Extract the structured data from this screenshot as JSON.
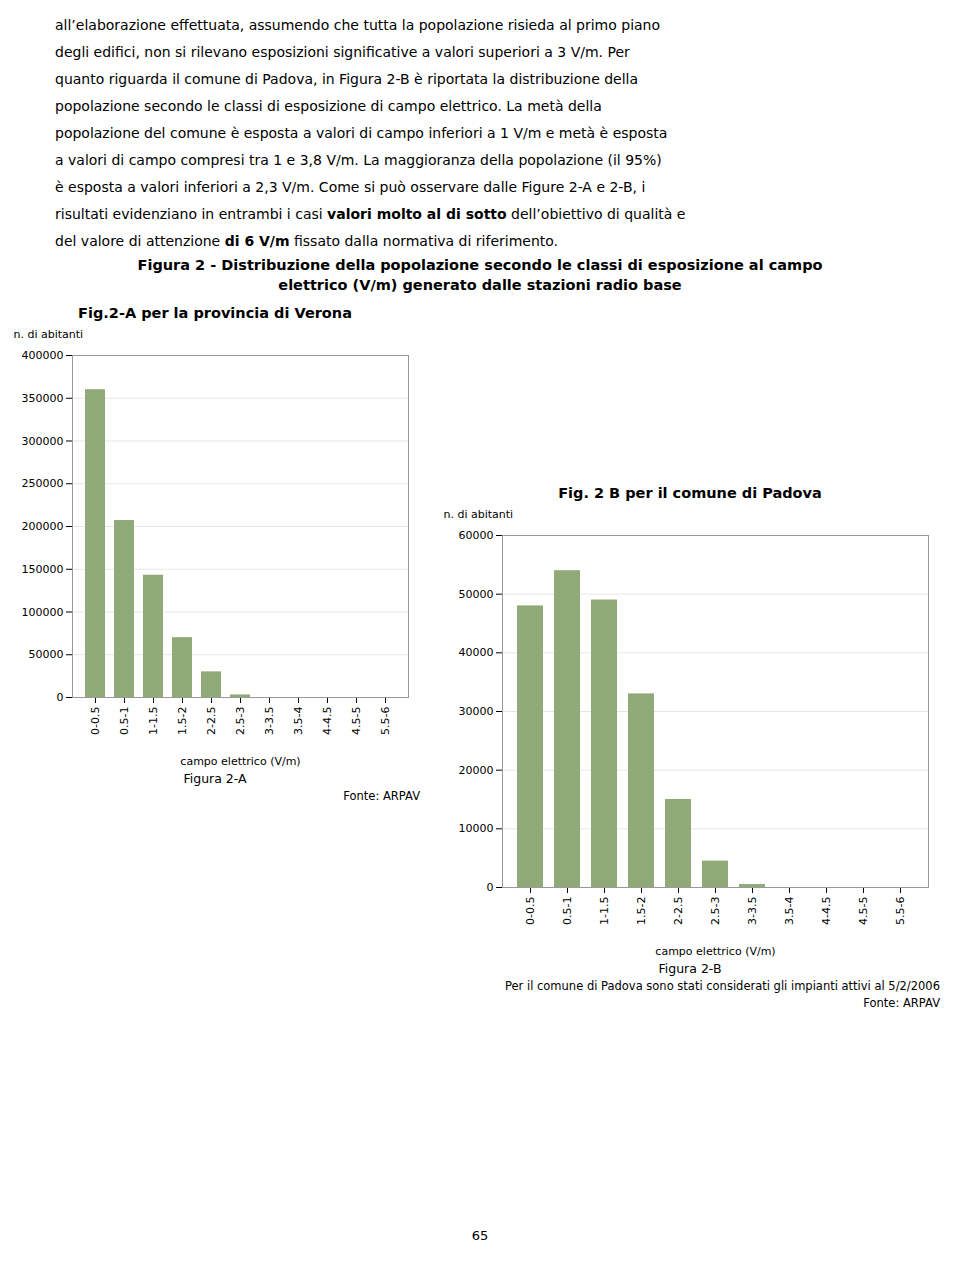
{
  "page_text": [
    [
      {
        "text": "all’elaborazione effettuata, assumendo che tutta la popolazione risieda al primo piano",
        "bold": false
      }
    ],
    [
      {
        "text": "degli edifici, non si rilevano esposizioni significative a valori superiori a 3 V/m. Per",
        "bold": false
      }
    ],
    [
      {
        "text": "quanto riguarda il comune di Padova, in Figura 2-B è riportata la distribuzione della",
        "bold": false
      }
    ],
    [
      {
        "text": "popolazione secondo le classi di esposizione di campo elettrico. La metà della",
        "bold": false
      }
    ],
    [
      {
        "text": "popolazione del comune è esposta a valori di campo inferiori a 1 V/m e metà è esposta",
        "bold": false
      }
    ],
    [
      {
        "text": "a valori di campo compresi tra 1 e 3,8 V/m. La maggioranza della popolazione (il 95%)",
        "bold": false
      }
    ],
    [
      {
        "text": "è esposta a valori inferiori a 2,3 V/m. Come si può osservare dalle Figure 2-A e 2-B, i",
        "bold": false
      }
    ],
    [
      {
        "text": "risultati evidenziano in entrambi i casi ",
        "bold": false
      },
      {
        "text": "valori molto al di sotto",
        "bold": true
      },
      {
        "text": " dell’obiettivo di qualità e",
        "bold": false
      }
    ],
    [
      {
        "text": "del valore di attenzione ",
        "bold": false
      },
      {
        "text": "di 6 V/m",
        "bold": true
      },
      {
        "text": " fissato dalla normativa di riferimento.",
        "bold": false
      }
    ]
  ],
  "figure_title": [
    "Figura 2 - Distribuzione della popolazione secondo le classi di esposizione al campo",
    "elettrico (V/m) generato dalle stazioni radio base"
  ],
  "page_number": "65",
  "chart_data": [
    {
      "type": "bar",
      "title": "Fig.2-A per la provincia di Verona",
      "categories": [
        "0-0.5",
        "0.5-1",
        "1-1.5",
        "1.5-2",
        "2-2.5",
        "2.5-3",
        "3-3.5",
        "3.5-4",
        "4-4.5",
        "4.5-5",
        "5.5-6"
      ],
      "values": [
        360000,
        207000,
        143000,
        70000,
        30000,
        3000,
        0,
        0,
        0,
        0,
        0
      ],
      "color": "#8faa76",
      "ylabel": "n. di abitanti",
      "xlabel": "campo elettrico (V/m)",
      "ylim": [
        0,
        400000
      ],
      "yticks": [
        0,
        50000,
        100000,
        150000,
        200000,
        250000,
        300000,
        350000,
        400000
      ],
      "grid": true,
      "caption": "Figura 2-A",
      "source": [
        "Fonte: ARPAV"
      ]
    },
    {
      "type": "bar",
      "title": "Fig. 2 B per il comune di Padova",
      "categories": [
        "0-0.5",
        "0.5-1",
        "1-1.5",
        "1.5-2",
        "2-2.5",
        "2.5-3",
        "3-3.5",
        "3.5-4",
        "4-4.5",
        "4.5-5",
        "5.5-6"
      ],
      "values": [
        48000,
        54000,
        49000,
        33000,
        15000,
        4500,
        500,
        0,
        0,
        0,
        0
      ],
      "color": "#8faa76",
      "ylabel": "n. di abitanti",
      "xlabel": "campo elettrico (V/m)",
      "ylim": [
        0,
        60000
      ],
      "yticks": [
        0,
        10000,
        20000,
        30000,
        40000,
        50000,
        60000
      ],
      "grid": true,
      "caption": "Figura 2-B",
      "source": [
        "Per il comune di Padova sono stati considerati gli impianti attivi al 5/2/2006",
        "Fonte: ARPAV"
      ]
    }
  ]
}
